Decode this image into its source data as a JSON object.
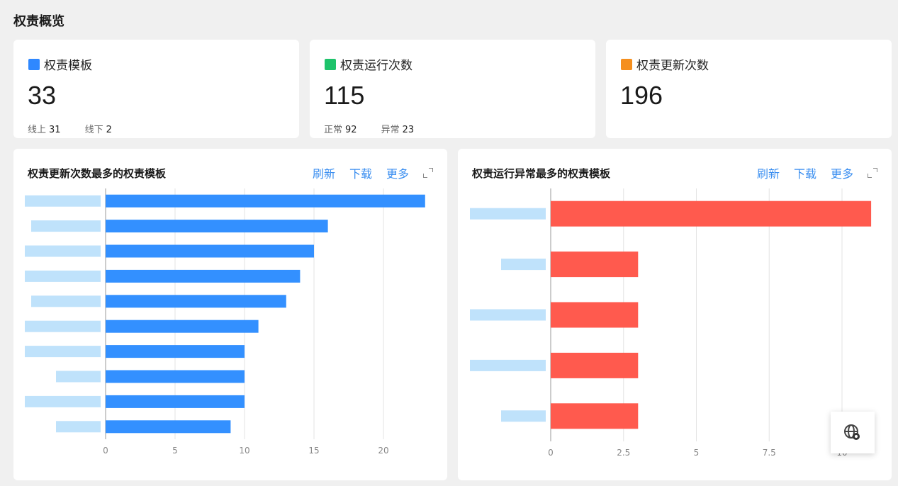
{
  "page_title": "权责概览",
  "stats": [
    {
      "label": "权责模板",
      "value": "33",
      "icon": "template-icon",
      "color": "#2f88ff",
      "subs": [
        {
          "label": "线上",
          "value": "31"
        },
        {
          "label": "线下",
          "value": "2"
        }
      ]
    },
    {
      "label": "权责运行次数",
      "value": "115",
      "icon": "monitor-icon",
      "color": "#1ec36b",
      "subs": [
        {
          "label": "正常",
          "value": "92"
        },
        {
          "label": "异常",
          "value": "23"
        }
      ]
    },
    {
      "label": "权责更新次数",
      "value": "196",
      "icon": "update-icon",
      "color": "#f58f1e",
      "subs": []
    }
  ],
  "actions": {
    "refresh": "刷新",
    "download": "下载",
    "more": "更多"
  },
  "chart_data": [
    {
      "type": "bar",
      "orientation": "horizontal",
      "title": "权责更新次数最多的权责模板",
      "values": [
        23,
        16,
        15,
        14,
        13,
        11,
        10,
        10,
        10,
        9
      ],
      "xlim": [
        0,
        23
      ],
      "xticks": [
        0,
        5,
        10,
        15,
        20
      ],
      "color": "#3390ff",
      "grid": true
    },
    {
      "type": "bar",
      "orientation": "horizontal",
      "title": "权责运行异常最多的权责模板",
      "values": [
        11,
        3,
        3,
        3,
        3
      ],
      "xlim": [
        0,
        11
      ],
      "xticks": [
        0,
        2.5,
        5,
        7.5,
        10
      ],
      "color": "#ff5a4e",
      "grid": true
    }
  ]
}
